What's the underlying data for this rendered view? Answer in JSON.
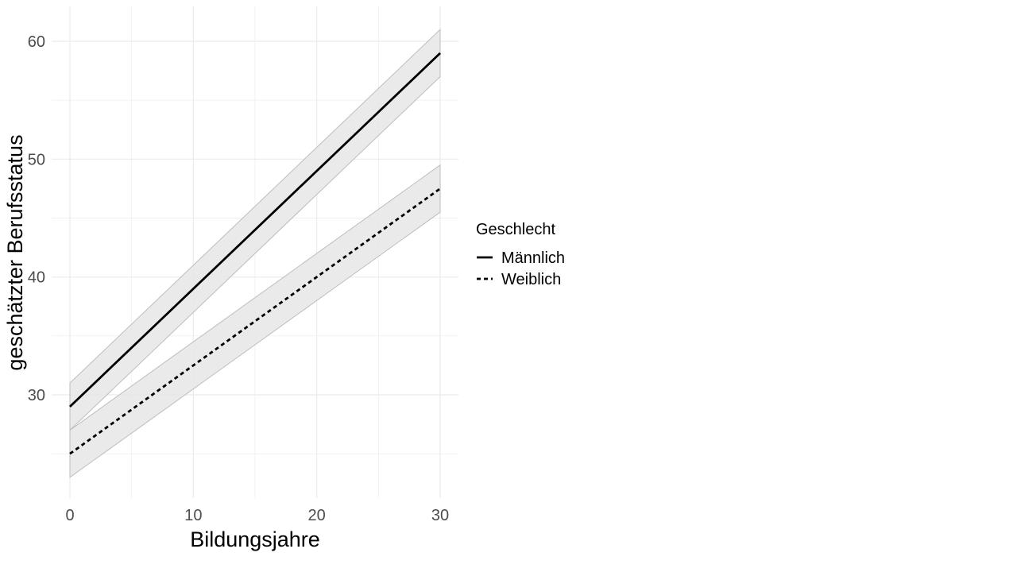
{
  "chart_data": {
    "type": "line",
    "title": "",
    "xlabel": "Bildungsjahre",
    "ylabel": "geschätzter Berufsstatus",
    "xlim": [
      0,
      30
    ],
    "ylim": [
      21.7,
      62.5
    ],
    "x_ticks": [
      0,
      10,
      20,
      30
    ],
    "y_ticks": [
      30,
      40,
      50,
      60
    ],
    "grid": true,
    "legend": {
      "title": "Geschlecht",
      "placement": "right"
    },
    "series": [
      {
        "name": "Männlich",
        "linestyle": "solid",
        "x": [
          0,
          30
        ],
        "y": [
          29,
          59
        ],
        "ci_lower": [
          27,
          57
        ],
        "ci_upper": [
          31,
          61
        ]
      },
      {
        "name": "Weiblich",
        "linestyle": "dashed",
        "x": [
          0,
          30
        ],
        "y": [
          25,
          47.5
        ],
        "ci_lower": [
          23,
          45.5
        ],
        "ci_upper": [
          27,
          49.5
        ]
      }
    ],
    "colors": {
      "line": "#000000",
      "ribbon_fill": "#e6e6e6",
      "ribbon_stroke": "#bdbdbd",
      "grid": "#ebebeb"
    }
  }
}
